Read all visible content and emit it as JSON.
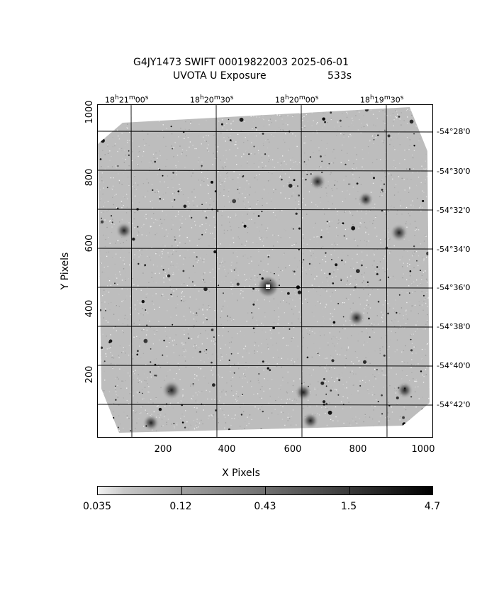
{
  "header": {
    "title_line1": "G4JY1473 SWIFT 00019822003 2025-06-01",
    "title_line2": "UVOTA U Exposure",
    "exposure": "533s"
  },
  "axes": {
    "xlabel": "X Pixels",
    "ylabel": "Y Pixels",
    "x_ticks": [
      "200",
      "400",
      "600",
      "800",
      "1000"
    ],
    "y_ticks": [
      "200",
      "400",
      "600",
      "800",
      "1000"
    ],
    "ra_ticks": [
      {
        "h": "18",
        "m": "21",
        "s": "00"
      },
      {
        "h": "18",
        "m": "20",
        "s": "30"
      },
      {
        "h": "18",
        "m": "20",
        "s": "00"
      },
      {
        "h": "18",
        "m": "19",
        "s": "30"
      }
    ],
    "dec_ticks": [
      "-54°28'0",
      "-54°30'0",
      "-54°32'0",
      "-54°34'0",
      "-54°36'0",
      "-54°38'0",
      "-54°40'0",
      "-54°42'0"
    ]
  },
  "colorbar": {
    "labels": [
      "0.035",
      "0.12",
      "0.43",
      "1.5",
      "4.7"
    ]
  }
}
